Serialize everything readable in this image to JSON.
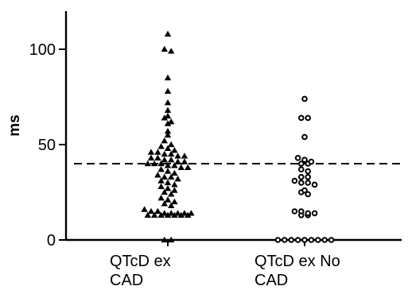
{
  "chart_data": {
    "type": "scatter",
    "title": "",
    "xlabel": "",
    "ylabel": "ms",
    "ylim": [
      0,
      120
    ],
    "yticks": [
      0,
      50,
      100
    ],
    "reference_line": {
      "y": 40,
      "style": "dashed"
    },
    "grid": false,
    "legend": "none",
    "categories": [
      {
        "lines": [
          "QTcD ex",
          "CAD"
        ],
        "marker": "filled-triangle"
      },
      {
        "lines": [
          "QTcD ex No",
          "CAD"
        ],
        "marker": "open-circle"
      }
    ],
    "series": [
      {
        "category_index": 0,
        "values": [
          108,
          100,
          99,
          85,
          78,
          72,
          68,
          65,
          64,
          62,
          61,
          57,
          55,
          52,
          50,
          49,
          48,
          47,
          46,
          46,
          45,
          45,
          44,
          44,
          43,
          43,
          42,
          42,
          41,
          41,
          40,
          40,
          40,
          39,
          39,
          38,
          38,
          37,
          36,
          35,
          34,
          33,
          33,
          32,
          31,
          30,
          29,
          28,
          27,
          26,
          25,
          24,
          22,
          21,
          20,
          19,
          18,
          16,
          15,
          15,
          14,
          14,
          14,
          14,
          14,
          13,
          13,
          13,
          13,
          13,
          13,
          13,
          0,
          0
        ]
      },
      {
        "category_index": 1,
        "values": [
          74,
          64,
          64,
          54,
          43,
          42,
          41,
          40,
          40,
          37,
          36,
          33,
          33,
          31,
          30,
          30,
          29,
          26,
          25,
          24,
          15,
          15,
          14,
          14,
          13,
          13,
          0,
          0,
          0,
          0,
          0,
          0,
          0,
          0,
          0
        ]
      }
    ]
  }
}
